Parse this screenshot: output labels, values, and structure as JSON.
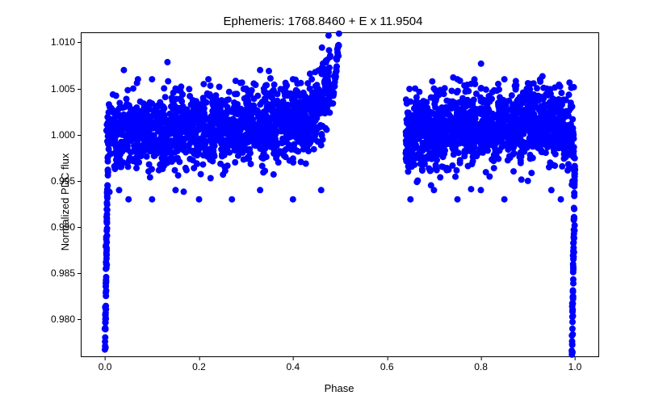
{
  "chart": {
    "type": "scatter",
    "title": "Ephemeris: 1768.8460 + E x 11.9504",
    "xlabel": "Phase",
    "ylabel": "Normalized PDC flux",
    "title_fontsize": 15,
    "label_fontsize": 13,
    "tick_fontsize": 12,
    "xlim": [
      -0.05,
      1.05
    ],
    "ylim": [
      0.976,
      1.011
    ],
    "xticks": [
      0.0,
      0.2,
      0.4,
      0.6,
      0.8,
      1.0
    ],
    "xtick_labels": [
      "0.0",
      "0.2",
      "0.4",
      "0.6",
      "0.8",
      "1.0"
    ],
    "yticks": [
      0.98,
      0.985,
      0.99,
      0.995,
      1.0,
      1.005,
      1.01
    ],
    "ytick_labels": [
      "0.980",
      "0.985",
      "0.990",
      "0.995",
      "1.000",
      "1.005",
      "1.010"
    ],
    "marker_color": "#0000ff",
    "marker_radius": 4,
    "marker_style": "circle",
    "background_color": "#ffffff",
    "border_color": "#000000",
    "text_color": "#000000",
    "data_clusters": [
      {
        "x_range": [
          0.002,
          0.48
        ],
        "y_center_line": [
          [
            0.002,
            1.0005
          ],
          [
            0.05,
            1.0
          ],
          [
            0.2,
            1.0005
          ],
          [
            0.35,
            1.001
          ],
          [
            0.45,
            1.002
          ],
          [
            0.48,
            1.005
          ]
        ],
        "y_spread": 0.0045,
        "n": 1600
      },
      {
        "x_range": [
          0.64,
          0.998
        ],
        "y_center_line": [
          [
            0.64,
            1.0
          ],
          [
            0.75,
            1.0005
          ],
          [
            0.9,
            1.001
          ],
          [
            0.97,
            1.001
          ],
          [
            0.998,
            1.0
          ]
        ],
        "y_spread": 0.0045,
        "n": 1400
      }
    ],
    "eclipse_segments": [
      {
        "x_range": [
          0.0,
          0.006
        ],
        "y_from": 0.977,
        "y_to": 0.997,
        "n": 40
      },
      {
        "x_range": [
          0.994,
          1.0
        ],
        "y_from": 0.977,
        "y_to": 0.997,
        "n": 40
      }
    ],
    "spike_segment": {
      "x_range": [
        0.485,
        0.498
      ],
      "y_from": 1.004,
      "y_to": 1.0102,
      "n": 30
    },
    "extra_outliers": [
      [
        0.04,
        1.007
      ],
      [
        0.06,
        1.005
      ],
      [
        0.07,
        1.006
      ],
      [
        0.1,
        1.006
      ],
      [
        0.15,
        1.005
      ],
      [
        0.22,
        1.006
      ],
      [
        0.3,
        1.005
      ],
      [
        0.33,
        1.007
      ],
      [
        0.4,
        1.006
      ],
      [
        0.44,
        1.006
      ],
      [
        0.47,
        1.008
      ],
      [
        0.03,
        0.994
      ],
      [
        0.05,
        0.993
      ],
      [
        0.1,
        0.993
      ],
      [
        0.15,
        0.994
      ],
      [
        0.2,
        0.993
      ],
      [
        0.27,
        0.993
      ],
      [
        0.33,
        0.994
      ],
      [
        0.4,
        0.993
      ],
      [
        0.46,
        0.994
      ],
      [
        0.65,
        0.993
      ],
      [
        0.7,
        0.994
      ],
      [
        0.75,
        0.993
      ],
      [
        0.8,
        0.994
      ],
      [
        0.85,
        0.993
      ],
      [
        0.9,
        0.995
      ],
      [
        0.95,
        0.994
      ],
      [
        0.97,
        0.993
      ],
      [
        0.64,
        0.998
      ],
      [
        0.645,
        0.996
      ],
      [
        0.66,
        1.005
      ],
      [
        0.7,
        1.005
      ],
      [
        0.75,
        1.006
      ],
      [
        0.8,
        1.005
      ],
      [
        0.85,
        1.006
      ],
      [
        0.9,
        1.005
      ],
      [
        0.94,
        1.005
      ],
      [
        0.45,
        1.003
      ],
      [
        0.46,
        1.004
      ]
    ]
  }
}
